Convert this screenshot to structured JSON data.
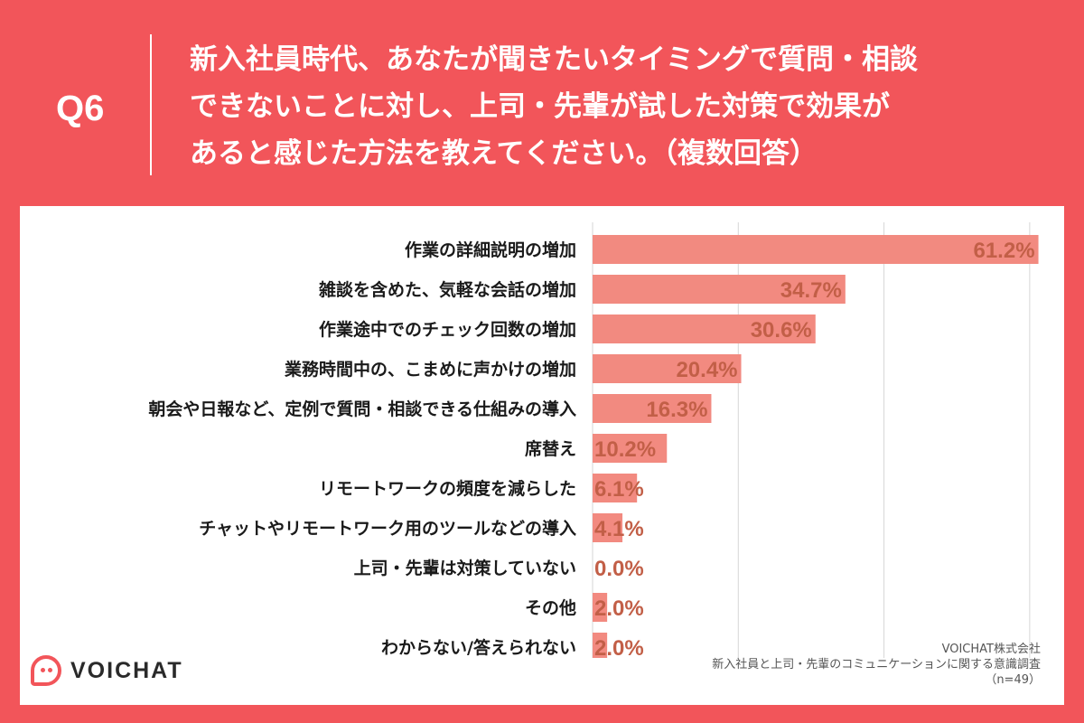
{
  "header": {
    "question_number": "Q6",
    "question_lines": [
      "新入社員時代、あなたが聞きたいタイミングで質問・相談",
      "できないことに対し、上司・先輩が試した対策で効果が",
      "あると感じた方法を教えてください。（複数回答）"
    ]
  },
  "chart_data": {
    "type": "bar",
    "orientation": "horizontal",
    "categories": [
      "作業の詳細説明の増加",
      "雑談を含めた、気軽な会話の増加",
      "作業途中でのチェック回数の増加",
      "業務時間中の、こまめに声かけの増加",
      "朝会や日報など、定例で質問・相談できる仕組みの導入",
      "席替え",
      "リモートワークの頻度を減らした",
      "チャットやリモートワーク用のツールなどの導入",
      "上司・先輩は対策していない",
      "その他",
      "わからない/答えられない"
    ],
    "values": [
      61.2,
      34.7,
      30.6,
      20.4,
      16.3,
      10.2,
      6.1,
      4.1,
      0.0,
      2.0,
      2.0
    ],
    "value_labels": [
      "61.2%",
      "34.7%",
      "30.6%",
      "20.4%",
      "16.3%",
      "10.2%",
      "6.1%",
      "4.1%",
      "0.0%",
      "2.0%",
      "2.0%"
    ],
    "xlim": [
      0,
      62
    ],
    "grid": true,
    "bar_color": "#f28a80",
    "value_label_color": "#c25f47"
  },
  "footer": {
    "logo_text": "VOICHAT",
    "source_lines": [
      "VOICHAT株式会社",
      "新入社員と上司・先輩のコミュニケーションに関する意識調査",
      "（n=49）"
    ]
  }
}
